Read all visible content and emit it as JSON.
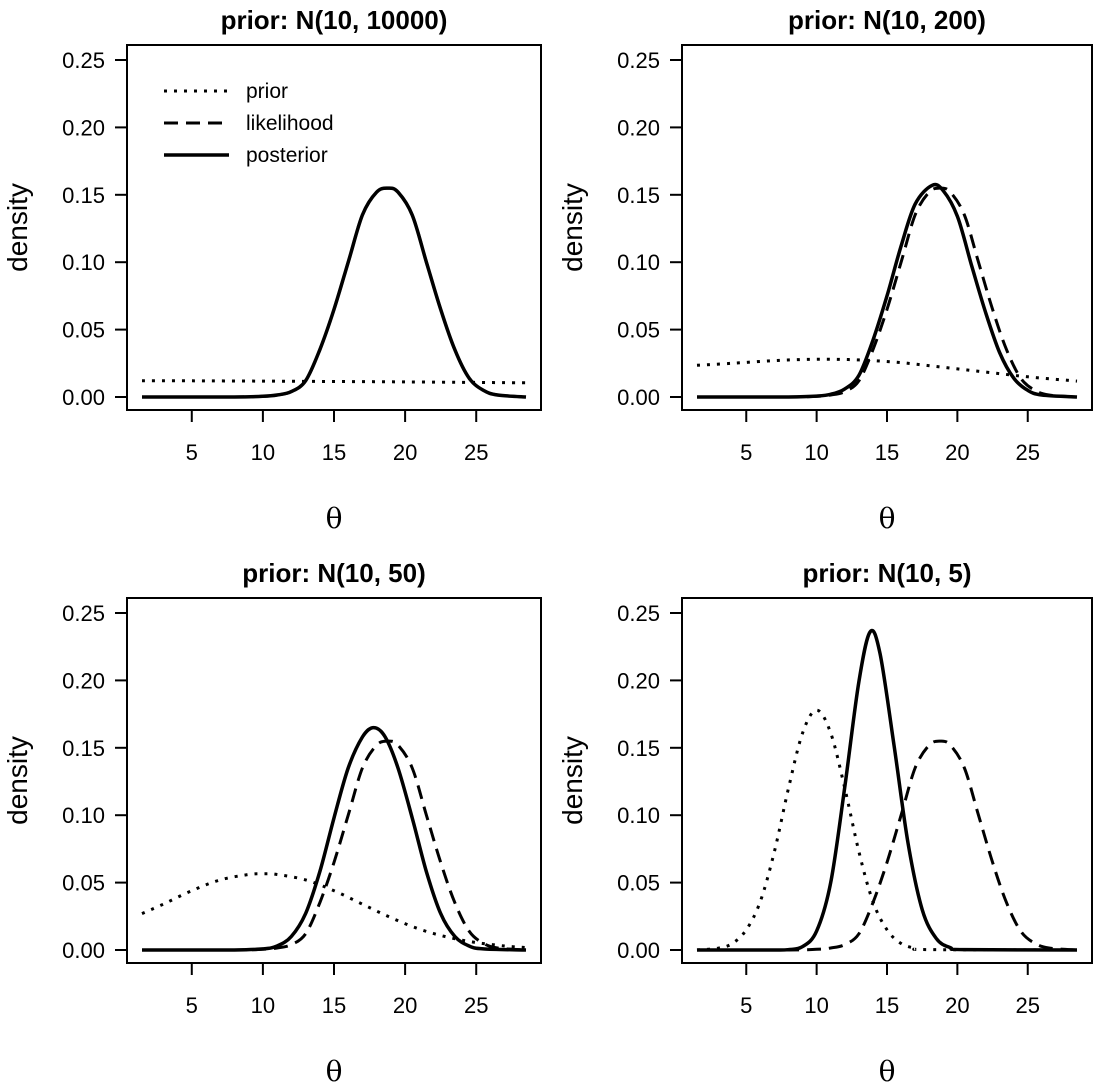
{
  "chart_data": [
    {
      "type": "line",
      "title": "prior: N(10, 10000)",
      "xlabel": "θ",
      "ylabel": "density",
      "xlim": [
        1.5,
        28.5
      ],
      "ylim": [
        0,
        0.25
      ],
      "xticks": [
        5,
        10,
        15,
        20,
        25
      ],
      "yticks": [
        "0.00",
        "0.05",
        "0.10",
        "0.15",
        "0.20",
        "0.25"
      ],
      "legend": {
        "position": "top-left",
        "entries": [
          "prior",
          "likelihood",
          "posterior"
        ]
      },
      "series": [
        {
          "name": "prior",
          "dash": "dotted",
          "values": [
            [
              1.5,
              0.012
            ],
            [
              5,
              0.012
            ],
            [
              10,
              0.0118
            ],
            [
              15,
              0.0115
            ],
            [
              20,
              0.0112
            ],
            [
              25,
              0.0108
            ],
            [
              28.5,
              0.0105
            ]
          ]
        },
        {
          "name": "likelihood",
          "dash": "dashed",
          "values": [
            [
              1.5,
              0
            ],
            [
              5,
              0
            ],
            [
              8,
              0
            ],
            [
              10,
              0.0005
            ],
            [
              11,
              0.0015
            ],
            [
              12,
              0.004
            ],
            [
              13,
              0.012
            ],
            [
              14,
              0.035
            ],
            [
              15,
              0.065
            ],
            [
              16,
              0.1
            ],
            [
              17,
              0.135
            ],
            [
              18,
              0.152
            ],
            [
              18.8,
              0.155
            ],
            [
              19.5,
              0.152
            ],
            [
              20.5,
              0.135
            ],
            [
              21.5,
              0.1
            ],
            [
              22.5,
              0.065
            ],
            [
              23.5,
              0.035
            ],
            [
              24.5,
              0.014
            ],
            [
              25.5,
              0.005
            ],
            [
              26.5,
              0.0015
            ],
            [
              28.5,
              0
            ]
          ]
        },
        {
          "name": "posterior",
          "dash": "solid",
          "values": [
            [
              1.5,
              0
            ],
            [
              5,
              0
            ],
            [
              8,
              0
            ],
            [
              10,
              0.0005
            ],
            [
              11,
              0.0015
            ],
            [
              12,
              0.004
            ],
            [
              13,
              0.012
            ],
            [
              14,
              0.035
            ],
            [
              15,
              0.065
            ],
            [
              16,
              0.1
            ],
            [
              17,
              0.135
            ],
            [
              18,
              0.152
            ],
            [
              18.8,
              0.155
            ],
            [
              19.5,
              0.152
            ],
            [
              20.5,
              0.135
            ],
            [
              21.5,
              0.1
            ],
            [
              22.5,
              0.065
            ],
            [
              23.5,
              0.035
            ],
            [
              24.5,
              0.014
            ],
            [
              25.5,
              0.005
            ],
            [
              26.5,
              0.0015
            ],
            [
              28.5,
              0
            ]
          ]
        }
      ]
    },
    {
      "type": "line",
      "title": "prior: N(10, 200)",
      "xlabel": "θ",
      "ylabel": "density",
      "xlim": [
        1.5,
        28.5
      ],
      "ylim": [
        0,
        0.25
      ],
      "xticks": [
        5,
        10,
        15,
        20,
        25
      ],
      "yticks": [
        "0.00",
        "0.05",
        "0.10",
        "0.15",
        "0.20",
        "0.25"
      ],
      "series": [
        {
          "name": "prior",
          "dash": "dotted",
          "values": [
            [
              1.5,
              0.0235
            ],
            [
              4,
              0.025
            ],
            [
              7,
              0.027
            ],
            [
              10,
              0.028
            ],
            [
              13,
              0.0275
            ],
            [
              16,
              0.0255
            ],
            [
              19,
              0.022
            ],
            [
              22,
              0.0185
            ],
            [
              25,
              0.015
            ],
            [
              28.5,
              0.0118
            ]
          ]
        },
        {
          "name": "likelihood",
          "dash": "dashed",
          "values": [
            [
              1.5,
              0
            ],
            [
              5,
              0
            ],
            [
              8,
              0
            ],
            [
              10,
              0.0005
            ],
            [
              11,
              0.0015
            ],
            [
              12,
              0.004
            ],
            [
              13,
              0.012
            ],
            [
              14,
              0.035
            ],
            [
              15,
              0.065
            ],
            [
              16,
              0.1
            ],
            [
              17,
              0.135
            ],
            [
              18,
              0.152
            ],
            [
              18.8,
              0.155
            ],
            [
              19.5,
              0.152
            ],
            [
              20.5,
              0.135
            ],
            [
              21.5,
              0.1
            ],
            [
              22.5,
              0.065
            ],
            [
              23.5,
              0.035
            ],
            [
              24.5,
              0.014
            ],
            [
              25.5,
              0.005
            ],
            [
              26.5,
              0.0015
            ],
            [
              28.5,
              0
            ]
          ]
        },
        {
          "name": "posterior",
          "dash": "solid",
          "values": [
            [
              1.5,
              0
            ],
            [
              5,
              0
            ],
            [
              8,
              0
            ],
            [
              10,
              0.0007
            ],
            [
              11,
              0.002
            ],
            [
              12,
              0.006
            ],
            [
              13,
              0.016
            ],
            [
              14,
              0.042
            ],
            [
              15,
              0.075
            ],
            [
              16,
              0.112
            ],
            [
              17,
              0.143
            ],
            [
              18.2,
              0.157
            ],
            [
              19,
              0.153
            ],
            [
              20,
              0.134
            ],
            [
              21,
              0.098
            ],
            [
              22,
              0.063
            ],
            [
              23,
              0.033
            ],
            [
              24,
              0.014
            ],
            [
              25,
              0.005
            ],
            [
              26,
              0.0015
            ],
            [
              28.5,
              0
            ]
          ]
        }
      ]
    },
    {
      "type": "line",
      "title": "prior: N(10, 50)",
      "xlabel": "θ",
      "ylabel": "density",
      "xlim": [
        1.5,
        28.5
      ],
      "ylim": [
        0,
        0.25
      ],
      "xticks": [
        5,
        10,
        15,
        20,
        25
      ],
      "yticks": [
        "0.00",
        "0.05",
        "0.10",
        "0.15",
        "0.20",
        "0.25"
      ],
      "series": [
        {
          "name": "prior",
          "dash": "dotted",
          "values": [
            [
              1.5,
              0.027
            ],
            [
              3,
              0.034
            ],
            [
              5,
              0.044
            ],
            [
              7,
              0.052
            ],
            [
              9,
              0.056
            ],
            [
              10,
              0.0565
            ],
            [
              11,
              0.056
            ],
            [
              13,
              0.052
            ],
            [
              15,
              0.044
            ],
            [
              17,
              0.034
            ],
            [
              19,
              0.024
            ],
            [
              21,
              0.0155
            ],
            [
              23,
              0.0095
            ],
            [
              25,
              0.0055
            ],
            [
              27,
              0.003
            ],
            [
              28.5,
              0.0018
            ]
          ]
        },
        {
          "name": "likelihood",
          "dash": "dashed",
          "values": [
            [
              1.5,
              0
            ],
            [
              5,
              0
            ],
            [
              8,
              0
            ],
            [
              10,
              0.0005
            ],
            [
              11,
              0.0015
            ],
            [
              12,
              0.004
            ],
            [
              13,
              0.012
            ],
            [
              14,
              0.035
            ],
            [
              15,
              0.065
            ],
            [
              16,
              0.1
            ],
            [
              17,
              0.135
            ],
            [
              18,
              0.152
            ],
            [
              18.8,
              0.155
            ],
            [
              19.5,
              0.152
            ],
            [
              20.5,
              0.135
            ],
            [
              21.5,
              0.1
            ],
            [
              22.5,
              0.065
            ],
            [
              23.5,
              0.035
            ],
            [
              24.5,
              0.014
            ],
            [
              25.5,
              0.005
            ],
            [
              26.5,
              0.0015
            ],
            [
              28.5,
              0
            ]
          ]
        },
        {
          "name": "posterior",
          "dash": "solid",
          "values": [
            [
              1.5,
              0
            ],
            [
              5,
              0
            ],
            [
              8,
              0
            ],
            [
              10,
              0.0008
            ],
            [
              11,
              0.003
            ],
            [
              12,
              0.01
            ],
            [
              13,
              0.027
            ],
            [
              14,
              0.058
            ],
            [
              15,
              0.098
            ],
            [
              16,
              0.135
            ],
            [
              17,
              0.158
            ],
            [
              17.8,
              0.165
            ],
            [
              18.6,
              0.158
            ],
            [
              19.5,
              0.135
            ],
            [
              20.5,
              0.098
            ],
            [
              21.5,
              0.058
            ],
            [
              22.5,
              0.027
            ],
            [
              23.5,
              0.01
            ],
            [
              24.5,
              0.003
            ],
            [
              25.5,
              0.0008
            ],
            [
              28.5,
              0
            ]
          ]
        }
      ]
    },
    {
      "type": "line",
      "title": "prior: N(10, 5)",
      "xlabel": "θ",
      "ylabel": "density",
      "xlim": [
        1.5,
        28.5
      ],
      "ylim": [
        0,
        0.25
      ],
      "xticks": [
        5,
        10,
        15,
        20,
        25
      ],
      "yticks": [
        "0.00",
        "0.05",
        "0.10",
        "0.15",
        "0.20",
        "0.25"
      ],
      "series": [
        {
          "name": "prior",
          "dash": "dotted",
          "values": [
            [
              1.5,
              0
            ],
            [
              3,
              0.0013
            ],
            [
              4,
              0.0048
            ],
            [
              5,
              0.015
            ],
            [
              6,
              0.036
            ],
            [
              7,
              0.073
            ],
            [
              8,
              0.12
            ],
            [
              9,
              0.161
            ],
            [
              10,
              0.178
            ],
            [
              11,
              0.161
            ],
            [
              12,
              0.12
            ],
            [
              13,
              0.073
            ],
            [
              14,
              0.036
            ],
            [
              15,
              0.015
            ],
            [
              16,
              0.0048
            ],
            [
              17,
              0.0013
            ],
            [
              18,
              0.0003
            ],
            [
              28.5,
              0
            ]
          ]
        },
        {
          "name": "likelihood",
          "dash": "dashed",
          "values": [
            [
              1.5,
              0
            ],
            [
              5,
              0
            ],
            [
              8,
              0
            ],
            [
              10,
              0.0005
            ],
            [
              11,
              0.0015
            ],
            [
              12,
              0.004
            ],
            [
              13,
              0.012
            ],
            [
              14,
              0.035
            ],
            [
              15,
              0.065
            ],
            [
              16,
              0.1
            ],
            [
              17,
              0.135
            ],
            [
              18,
              0.152
            ],
            [
              18.8,
              0.155
            ],
            [
              19.5,
              0.152
            ],
            [
              20.5,
              0.135
            ],
            [
              21.5,
              0.1
            ],
            [
              22.5,
              0.065
            ],
            [
              23.5,
              0.035
            ],
            [
              24.5,
              0.014
            ],
            [
              25.5,
              0.005
            ],
            [
              26.5,
              0.0015
            ],
            [
              28.5,
              0
            ]
          ]
        },
        {
          "name": "posterior",
          "dash": "solid",
          "values": [
            [
              1.5,
              0
            ],
            [
              7,
              0
            ],
            [
              8,
              0.0003
            ],
            [
              9,
              0.0025
            ],
            [
              10,
              0.014
            ],
            [
              11,
              0.05
            ],
            [
              12,
              0.121
            ],
            [
              13,
              0.199
            ],
            [
              13.8,
              0.236
            ],
            [
              14.5,
              0.22
            ],
            [
              15.5,
              0.152
            ],
            [
              16.5,
              0.079
            ],
            [
              17.5,
              0.03
            ],
            [
              18.5,
              0.0085
            ],
            [
              19.5,
              0.0018
            ],
            [
              20.5,
              0.0003
            ],
            [
              28.5,
              0
            ]
          ]
        }
      ]
    }
  ]
}
